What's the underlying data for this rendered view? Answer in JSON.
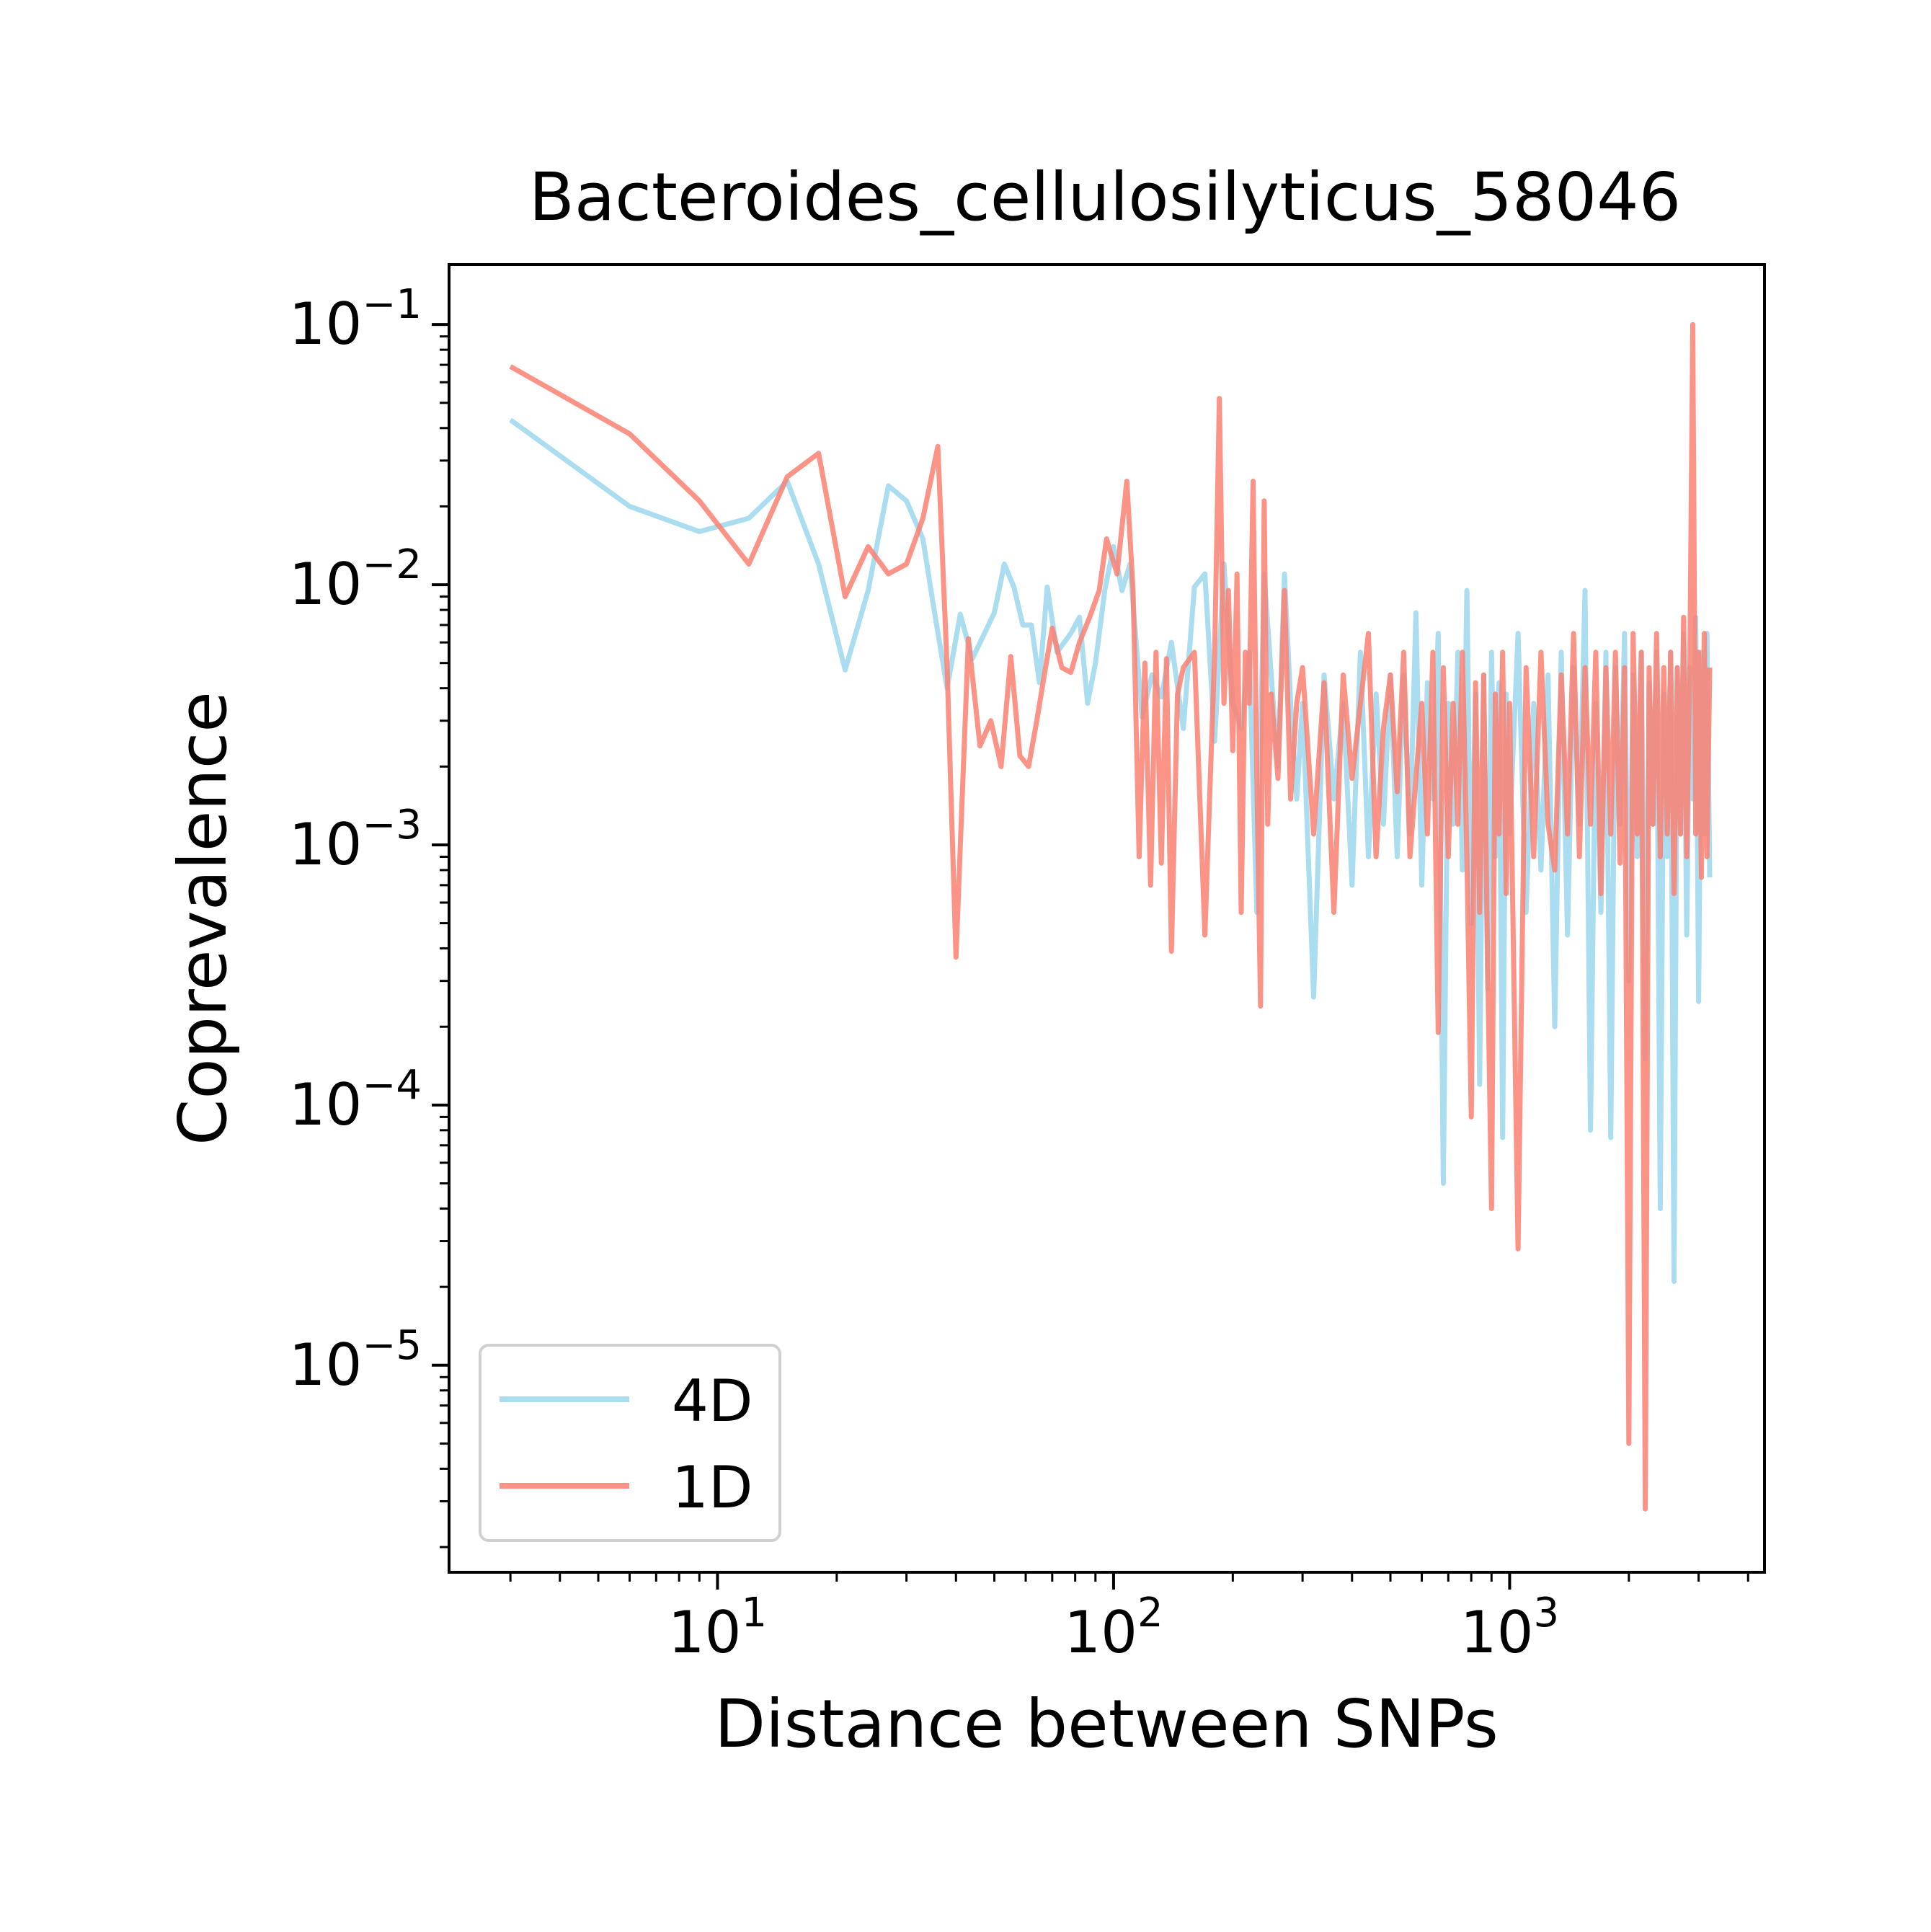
{
  "chart_data": {
    "type": "line",
    "title": "Bacteroides_cellulosilyticus_58046",
    "xlabel": "Distance between SNPs",
    "ylabel": "Coprevalence",
    "xscale": "log",
    "yscale": "log",
    "xlim": [
      2.1,
      4400
    ],
    "ylim": [
      1.6e-06,
      0.17
    ],
    "x_ticks": [
      {
        "value": 10,
        "base": "10",
        "exp": "1"
      },
      {
        "value": 100,
        "base": "10",
        "exp": "2"
      },
      {
        "value": 1000,
        "base": "10",
        "exp": "3"
      }
    ],
    "y_ticks": [
      {
        "value": 0.1,
        "base": "10",
        "exp": "−1"
      },
      {
        "value": 0.01,
        "base": "10",
        "exp": "−2"
      },
      {
        "value": 0.001,
        "base": "10",
        "exp": "−3"
      },
      {
        "value": 0.0001,
        "base": "10",
        "exp": "−4"
      },
      {
        "value": 1e-05,
        "base": "10",
        "exp": "−5"
      }
    ],
    "grid": false,
    "legend": {
      "position": "lower-left",
      "entries": [
        "4D",
        "1D"
      ]
    },
    "series": [
      {
        "name": "4D",
        "color": "#87CEEB",
        "points": [
          [
            3,
            0.043
          ],
          [
            6,
            0.02
          ],
          [
            9,
            0.016
          ],
          [
            12,
            0.018
          ],
          [
            15,
            0.025
          ],
          [
            18,
            0.012
          ],
          [
            21,
            0.0047
          ],
          [
            24,
            0.0095
          ],
          [
            27,
            0.024
          ],
          [
            30,
            0.021
          ],
          [
            33,
            0.015
          ],
          [
            35,
            0.0085
          ],
          [
            38,
            0.004
          ],
          [
            41,
            0.0077
          ],
          [
            44,
            0.0052
          ],
          [
            50,
            0.0078
          ],
          [
            53,
            0.012
          ],
          [
            56,
            0.0098
          ],
          [
            59,
            0.007
          ],
          [
            62,
            0.007
          ],
          [
            65,
            0.0042
          ],
          [
            68,
            0.0098
          ],
          [
            72,
            0.0055
          ],
          [
            78,
            0.0065
          ],
          [
            82,
            0.0075
          ],
          [
            86,
            0.0035
          ],
          [
            90,
            0.005
          ],
          [
            95,
            0.0095
          ],
          [
            100,
            0.014
          ],
          [
            105,
            0.0095
          ],
          [
            110,
            0.012
          ],
          [
            118,
            0.0031
          ],
          [
            125,
            0.0045
          ],
          [
            132,
            0.0037
          ],
          [
            140,
            0.006
          ],
          [
            150,
            0.0028
          ],
          [
            160,
            0.0098
          ],
          [
            170,
            0.011
          ],
          [
            180,
            0.0025
          ],
          [
            190,
            0.012
          ],
          [
            200,
            0.0035
          ],
          [
            210,
            0.0028
          ],
          [
            220,
            0.0055
          ],
          [
            230,
            0.00055
          ],
          [
            240,
            0.011
          ],
          [
            250,
            0.0045
          ],
          [
            260,
            0.002
          ],
          [
            270,
            0.011
          ],
          [
            280,
            0.0035
          ],
          [
            290,
            0.0015
          ],
          [
            300,
            0.0035
          ],
          [
            320,
            0.00026
          ],
          [
            340,
            0.0045
          ],
          [
            360,
            0.0015
          ],
          [
            380,
            0.0035
          ],
          [
            400,
            0.0007
          ],
          [
            420,
            0.0055
          ],
          [
            440,
            0.0009
          ],
          [
            460,
            0.0038
          ],
          [
            480,
            0.0012
          ],
          [
            500,
            0.0045
          ],
          [
            520,
            0.0009
          ],
          [
            540,
            0.0045
          ],
          [
            560,
            0.0011
          ],
          [
            580,
            0.0078
          ],
          [
            600,
            0.0007
          ],
          [
            620,
            0.0042
          ],
          [
            640,
            0.0015
          ],
          [
            660,
            0.0065
          ],
          [
            680,
            5e-05
          ],
          [
            700,
            0.0035
          ],
          [
            720,
            0.0012
          ],
          [
            740,
            0.0055
          ],
          [
            760,
            0.0008
          ],
          [
            780,
            0.0095
          ],
          [
            800,
            0.0005
          ],
          [
            820,
            0.0038
          ],
          [
            840,
            0.00012
          ],
          [
            860,
            0.0045
          ],
          [
            880,
            0.00028
          ],
          [
            900,
            0.0055
          ],
          [
            920,
            0.0009
          ],
          [
            940,
            0.0042
          ],
          [
            960,
            7.5e-05
          ],
          [
            980,
            0.0038
          ],
          [
            1000,
            0.0011
          ],
          [
            1050,
            0.0065
          ],
          [
            1100,
            0.00055
          ],
          [
            1150,
            0.0035
          ],
          [
            1200,
            0.0008
          ],
          [
            1250,
            0.0045
          ],
          [
            1300,
            0.0002
          ],
          [
            1350,
            0.0055
          ],
          [
            1400,
            0.00045
          ],
          [
            1450,
            0.0048
          ],
          [
            1500,
            0.0012
          ],
          [
            1550,
            0.0095
          ],
          [
            1600,
            8e-05
          ],
          [
            1650,
            0.0035
          ],
          [
            1700,
            0.00055
          ],
          [
            1750,
            0.0055
          ],
          [
            1800,
            7.5e-05
          ],
          [
            1850,
            0.0048
          ],
          [
            1900,
            0.0012
          ],
          [
            1950,
            0.0065
          ],
          [
            2000,
            0.0003
          ],
          [
            2050,
            0.0045
          ],
          [
            2100,
            0.0009
          ],
          [
            2150,
            0.0055
          ],
          [
            2200,
            0.00015
          ],
          [
            2250,
            0.0042
          ],
          [
            2300,
            0.0012
          ],
          [
            2350,
            0.0055
          ],
          [
            2400,
            4e-05
          ],
          [
            2450,
            0.0038
          ],
          [
            2500,
            0.0009
          ],
          [
            2550,
            0.0055
          ],
          [
            2600,
            2.1e-05
          ],
          [
            2650,
            0.0048
          ],
          [
            2700,
            0.0011
          ],
          [
            2750,
            0.0065
          ],
          [
            2800,
            0.00045
          ],
          [
            2850,
            0.0048
          ],
          [
            2900,
            0.0015
          ],
          [
            2950,
            0.0075
          ],
          [
            3000,
            0.00025
          ],
          [
            3050,
            0.0055
          ],
          [
            3100,
            0.0011
          ],
          [
            3150,
            0.0065
          ],
          [
            3200,
            0.00075
          ]
        ]
      },
      {
        "name": "1D",
        "color": "#FA8072",
        "points": [
          [
            3,
            0.069
          ],
          [
            6,
            0.038
          ],
          [
            9,
            0.021
          ],
          [
            12,
            0.012
          ],
          [
            15,
            0.026
          ],
          [
            18,
            0.032
          ],
          [
            21,
            0.009
          ],
          [
            24,
            0.014
          ],
          [
            27,
            0.011
          ],
          [
            30,
            0.012
          ],
          [
            33,
            0.018
          ],
          [
            36,
            0.034
          ],
          [
            38,
            0.0048
          ],
          [
            40,
            0.00037
          ],
          [
            43,
            0.0062
          ],
          [
            46,
            0.0024
          ],
          [
            49,
            0.003
          ],
          [
            52,
            0.002
          ],
          [
            55,
            0.0053
          ],
          [
            58,
            0.0022
          ],
          [
            61,
            0.002
          ],
          [
            64,
            0.003
          ],
          [
            67,
            0.0046
          ],
          [
            70,
            0.0068
          ],
          [
            74,
            0.0048
          ],
          [
            78,
            0.0046
          ],
          [
            82,
            0.006
          ],
          [
            87,
            0.0075
          ],
          [
            92,
            0.0095
          ],
          [
            96,
            0.015
          ],
          [
            102,
            0.011
          ],
          [
            108,
            0.025
          ],
          [
            112,
            0.0095
          ],
          [
            116,
            0.0009
          ],
          [
            120,
            0.005
          ],
          [
            124,
            0.0007
          ],
          [
            128,
            0.0055
          ],
          [
            132,
            0.00085
          ],
          [
            136,
            0.0052
          ],
          [
            140,
            0.00039
          ],
          [
            145,
            0.0038
          ],
          [
            150,
            0.0048
          ],
          [
            160,
            0.0055
          ],
          [
            170,
            0.00045
          ],
          [
            180,
            0.0055
          ],
          [
            185,
            0.052
          ],
          [
            190,
            0.0035
          ],
          [
            195,
            0.0095
          ],
          [
            200,
            0.0023
          ],
          [
            205,
            0.011
          ],
          [
            210,
            0.00055
          ],
          [
            215,
            0.0055
          ],
          [
            220,
            0.0035
          ],
          [
            225,
            0.025
          ],
          [
            230,
            0.0018
          ],
          [
            235,
            0.00024
          ],
          [
            240,
            0.021
          ],
          [
            245,
            0.0012
          ],
          [
            250,
            0.0038
          ],
          [
            260,
            0.0018
          ],
          [
            270,
            0.0095
          ],
          [
            280,
            0.0015
          ],
          [
            290,
            0.0035
          ],
          [
            300,
            0.0048
          ],
          [
            320,
            0.0011
          ],
          [
            340,
            0.0042
          ],
          [
            360,
            0.00055
          ],
          [
            380,
            0.0045
          ],
          [
            400,
            0.0018
          ],
          [
            420,
            0.0035
          ],
          [
            440,
            0.0065
          ],
          [
            460,
            0.0009
          ],
          [
            480,
            0.0028
          ],
          [
            500,
            0.0045
          ],
          [
            520,
            0.0016
          ],
          [
            540,
            0.0055
          ],
          [
            560,
            0.0009
          ],
          [
            580,
            0.0018
          ],
          [
            600,
            0.0035
          ],
          [
            620,
            0.0011
          ],
          [
            640,
            0.0055
          ],
          [
            660,
            0.00019
          ],
          [
            680,
            0.0048
          ],
          [
            700,
            0.0009
          ],
          [
            720,
            0.0035
          ],
          [
            740,
            0.0012
          ],
          [
            760,
            0.0055
          ],
          [
            780,
            0.0009
          ],
          [
            800,
            9e-05
          ],
          [
            820,
            0.0042
          ],
          [
            840,
            0.00055
          ],
          [
            860,
            0.0045
          ],
          [
            880,
            0.00035
          ],
          [
            900,
            4e-05
          ],
          [
            920,
            0.0038
          ],
          [
            940,
            0.0011
          ],
          [
            960,
            0.0055
          ],
          [
            980,
            0.00065
          ],
          [
            1000,
            0.0035
          ],
          [
            1050,
            2.8e-05
          ],
          [
            1100,
            0.0048
          ],
          [
            1150,
            0.0009
          ],
          [
            1200,
            0.0055
          ],
          [
            1250,
            0.0012
          ],
          [
            1300,
            0.0008
          ],
          [
            1350,
            0.0045
          ],
          [
            1400,
            0.0011
          ],
          [
            1450,
            0.0065
          ],
          [
            1500,
            0.0009
          ],
          [
            1550,
            0.0048
          ],
          [
            1600,
            0.0012
          ],
          [
            1650,
            0.0055
          ],
          [
            1700,
            0.00065
          ],
          [
            1750,
            0.0048
          ],
          [
            1800,
            0.0011
          ],
          [
            1850,
            0.0055
          ],
          [
            1900,
            0.00085
          ],
          [
            1950,
            0.0048
          ],
          [
            2000,
            5e-06
          ],
          [
            2050,
            0.0065
          ],
          [
            2100,
            0.0011
          ],
          [
            2150,
            0.0055
          ],
          [
            2200,
            2.8e-06
          ],
          [
            2250,
            0.0048
          ],
          [
            2300,
            0.0012
          ],
          [
            2350,
            0.0065
          ],
          [
            2400,
            0.0009
          ],
          [
            2450,
            0.0048
          ],
          [
            2500,
            0.0011
          ],
          [
            2550,
            0.0055
          ],
          [
            2600,
            0.00065
          ],
          [
            2650,
            0.0048
          ],
          [
            2700,
            0.0011
          ],
          [
            2750,
            0.0075
          ],
          [
            2800,
            0.0009
          ],
          [
            2850,
            0.0048
          ],
          [
            2900,
            0.1
          ],
          [
            2950,
            0.0011
          ],
          [
            3000,
            0.0055
          ],
          [
            3050,
            0.00075
          ],
          [
            3100,
            0.0065
          ],
          [
            3150,
            0.0009
          ],
          [
            3200,
            0.0048
          ]
        ]
      }
    ]
  }
}
